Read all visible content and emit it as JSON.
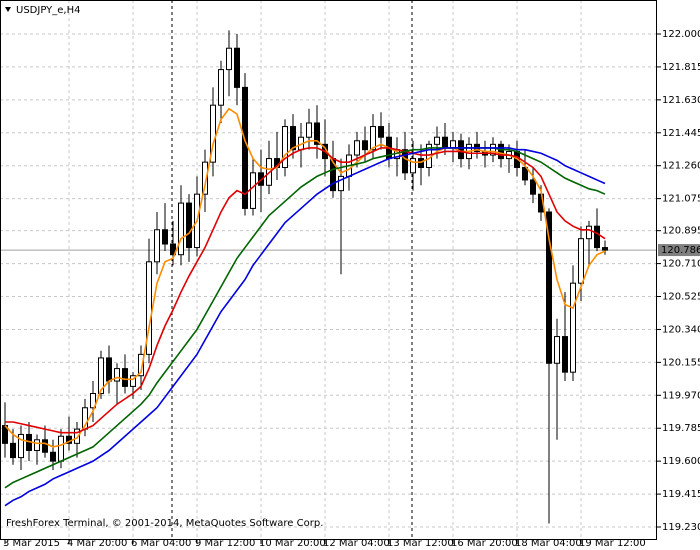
{
  "chart_data": {
    "type": "candlestick",
    "title": "USDJPY_e,H4",
    "footer": "FreshForex Terminal, © 2001-2014, MetaQuotes Software Corp.",
    "categories": [
      "3 Mar 2015",
      null,
      null,
      null,
      null,
      null,
      null,
      null,
      "4 Mar 20:00",
      null,
      null,
      null,
      null,
      null,
      null,
      null,
      "6 Mar 04:00",
      null,
      null,
      null,
      null,
      null,
      null,
      null,
      "9 Mar 12:00",
      null,
      null,
      null,
      null,
      null,
      null,
      null,
      "10 Mar 20:00",
      null,
      null,
      null,
      null,
      null,
      null,
      null,
      "12 Mar 04:00",
      null,
      null,
      null,
      null,
      null,
      null,
      null,
      "13 Mar 12:00",
      null,
      null,
      null,
      null,
      null,
      null,
      null,
      "16 Mar 20:00",
      null,
      null,
      null,
      null,
      null,
      null,
      null,
      "18 Mar 04:00",
      null,
      null,
      null,
      null,
      null,
      null,
      null,
      "19 Mar 12:00",
      null,
      null,
      null
    ],
    "ohlc": [
      [
        119.8,
        119.93,
        119.62,
        119.7
      ],
      [
        119.7,
        119.78,
        119.58,
        119.62
      ],
      [
        119.62,
        119.8,
        119.55,
        119.75
      ],
      [
        119.75,
        119.82,
        119.6,
        119.66
      ],
      [
        119.66,
        119.75,
        119.58,
        119.72
      ],
      [
        119.72,
        119.8,
        119.62,
        119.65
      ],
      [
        119.65,
        119.72,
        119.55,
        119.6
      ],
      [
        119.6,
        119.78,
        119.56,
        119.74
      ],
      [
        119.74,
        119.85,
        119.66,
        119.7
      ],
      [
        119.7,
        119.82,
        119.62,
        119.78
      ],
      [
        119.78,
        119.95,
        119.74,
        119.9
      ],
      [
        119.9,
        120.05,
        119.82,
        119.98
      ],
      [
        119.98,
        120.22,
        119.95,
        120.18
      ],
      [
        120.18,
        120.25,
        119.98,
        120.05
      ],
      [
        120.05,
        120.15,
        119.92,
        120.12
      ],
      [
        120.12,
        120.2,
        119.98,
        120.02
      ],
      [
        120.02,
        120.1,
        119.95,
        120.08
      ],
      [
        120.08,
        120.25,
        120.0,
        120.2
      ],
      [
        120.2,
        120.85,
        120.15,
        120.72
      ],
      [
        120.72,
        121.0,
        120.65,
        120.9
      ],
      [
        120.9,
        121.05,
        120.78,
        120.82
      ],
      [
        120.82,
        120.95,
        120.7,
        120.76
      ],
      [
        120.76,
        121.15,
        120.7,
        121.05
      ],
      [
        121.05,
        121.1,
        120.72,
        120.8
      ],
      [
        120.8,
        121.2,
        120.75,
        121.1
      ],
      [
        121.1,
        121.35,
        121.0,
        121.28
      ],
      [
        121.28,
        121.7,
        121.2,
        121.6
      ],
      [
        121.6,
        121.85,
        121.5,
        121.8
      ],
      [
        121.8,
        122.02,
        121.65,
        121.92
      ],
      [
        121.92,
        122.0,
        121.6,
        121.7
      ],
      [
        121.7,
        121.78,
        120.98,
        121.02
      ],
      [
        121.02,
        121.3,
        120.98,
        121.22
      ],
      [
        121.22,
        121.35,
        121.0,
        121.15
      ],
      [
        121.15,
        121.4,
        121.1,
        121.3
      ],
      [
        121.3,
        121.45,
        121.18,
        121.25
      ],
      [
        121.25,
        121.52,
        121.2,
        121.48
      ],
      [
        121.48,
        121.55,
        121.3,
        121.35
      ],
      [
        121.35,
        121.5,
        121.25,
        121.42
      ],
      [
        121.42,
        121.58,
        121.35,
        121.5
      ],
      [
        121.5,
        121.6,
        121.3,
        121.38
      ],
      [
        121.38,
        121.52,
        121.2,
        121.3
      ],
      [
        121.3,
        121.4,
        121.08,
        121.12
      ],
      [
        121.12,
        121.3,
        120.65,
        121.2
      ],
      [
        121.2,
        121.38,
        121.12,
        121.32
      ],
      [
        121.32,
        121.45,
        121.25,
        121.4
      ],
      [
        121.4,
        121.48,
        121.28,
        121.35
      ],
      [
        121.35,
        121.55,
        121.3,
        121.48
      ],
      [
        121.48,
        121.56,
        121.35,
        121.42
      ],
      [
        121.42,
        121.5,
        121.25,
        121.3
      ],
      [
        121.3,
        121.42,
        121.2,
        121.35
      ],
      [
        121.35,
        121.45,
        121.18,
        121.22
      ],
      [
        121.22,
        121.4,
        121.12,
        121.3
      ],
      [
        121.3,
        121.38,
        121.15,
        121.25
      ],
      [
        121.25,
        121.4,
        121.2,
        121.38
      ],
      [
        121.38,
        121.48,
        121.3,
        121.42
      ],
      [
        121.42,
        121.5,
        121.32,
        121.36
      ],
      [
        121.36,
        121.45,
        121.28,
        121.4
      ],
      [
        121.4,
        121.44,
        121.25,
        121.3
      ],
      [
        121.3,
        121.42,
        121.24,
        121.38
      ],
      [
        121.38,
        121.45,
        121.3,
        121.34
      ],
      [
        121.34,
        121.4,
        121.25,
        121.32
      ],
      [
        121.32,
        121.42,
        121.28,
        121.38
      ],
      [
        121.38,
        121.4,
        121.25,
        121.3
      ],
      [
        121.3,
        121.38,
        121.22,
        121.34
      ],
      [
        121.34,
        121.4,
        121.2,
        121.25
      ],
      [
        121.25,
        121.35,
        121.15,
        121.18
      ],
      [
        121.18,
        121.25,
        121.05,
        121.1
      ],
      [
        121.1,
        121.15,
        120.95,
        121.0
      ],
      [
        121.0,
        121.02,
        119.25,
        120.15
      ],
      [
        120.15,
        120.4,
        119.72,
        120.3
      ],
      [
        120.3,
        120.55,
        120.05,
        120.1
      ],
      [
        120.1,
        120.7,
        120.05,
        120.6
      ],
      [
        120.6,
        120.92,
        120.5,
        120.85
      ],
      [
        120.85,
        120.95,
        120.7,
        120.92
      ],
      [
        120.92,
        121.02,
        120.78,
        120.8
      ],
      [
        120.8,
        120.84,
        120.76,
        120.786
      ]
    ],
    "series": [
      {
        "color": "#ff8c00",
        "values": [
          119.8,
          119.75,
          119.72,
          119.71,
          119.7,
          119.7,
          119.68,
          119.69,
          119.71,
          119.73,
          119.8,
          119.88,
          120.0,
          120.05,
          120.07,
          120.06,
          120.06,
          120.1,
          120.35,
          120.6,
          120.72,
          120.74,
          120.85,
          120.88,
          120.95,
          121.15,
          121.38,
          121.52,
          121.58,
          121.55,
          121.4,
          121.3,
          121.25,
          121.24,
          121.25,
          121.32,
          121.36,
          121.38,
          121.4,
          121.4,
          121.36,
          121.28,
          121.22,
          121.24,
          121.28,
          121.32,
          121.36,
          121.38,
          121.36,
          121.34,
          121.3,
          121.28,
          121.28,
          121.3,
          121.34,
          121.36,
          121.36,
          121.34,
          121.34,
          121.35,
          121.34,
          121.34,
          121.33,
          121.32,
          121.3,
          121.26,
          121.2,
          121.12,
          120.85,
          120.62,
          120.48,
          120.46,
          120.58,
          120.7,
          120.76,
          120.78
        ]
      },
      {
        "color": "#e00000",
        "values": [
          119.82,
          119.82,
          119.81,
          119.8,
          119.79,
          119.78,
          119.77,
          119.76,
          119.76,
          119.76,
          119.78,
          119.8,
          119.84,
          119.88,
          119.92,
          119.95,
          119.98,
          120.02,
          120.12,
          120.25,
          120.36,
          120.45,
          120.55,
          120.64,
          120.72,
          120.8,
          120.9,
          121.0,
          121.08,
          121.12,
          121.1,
          121.14,
          121.18,
          121.22,
          121.26,
          121.3,
          121.33,
          121.35,
          121.36,
          121.36,
          121.34,
          121.3,
          121.28,
          121.28,
          121.3,
          121.32,
          121.34,
          121.36,
          121.36,
          121.35,
          121.34,
          121.33,
          121.32,
          121.32,
          121.33,
          121.34,
          121.34,
          121.34,
          121.33,
          121.33,
          121.33,
          121.33,
          121.32,
          121.32,
          121.31,
          121.28,
          121.25,
          121.2,
          121.1,
          121.0,
          120.95,
          120.92,
          120.9,
          120.9,
          120.88,
          120.85
        ]
      },
      {
        "color": "#006400",
        "values": [
          119.45,
          119.48,
          119.5,
          119.52,
          119.54,
          119.56,
          119.58,
          119.6,
          119.62,
          119.64,
          119.66,
          119.68,
          119.72,
          119.76,
          119.8,
          119.84,
          119.88,
          119.92,
          119.97,
          120.04,
          120.1,
          120.16,
          120.22,
          120.28,
          120.34,
          120.42,
          120.5,
          120.58,
          120.66,
          120.74,
          120.8,
          120.86,
          120.92,
          120.98,
          121.02,
          121.06,
          121.1,
          121.14,
          121.17,
          121.2,
          121.22,
          121.24,
          121.25,
          121.26,
          121.27,
          121.28,
          121.3,
          121.31,
          121.32,
          121.33,
          121.34,
          121.35,
          121.35,
          121.36,
          121.36,
          121.36,
          121.36,
          121.36,
          121.36,
          121.36,
          121.36,
          121.36,
          121.35,
          121.35,
          121.34,
          121.32,
          121.3,
          121.28,
          121.25,
          121.22,
          121.19,
          121.17,
          121.15,
          121.13,
          121.12,
          121.1
        ]
      },
      {
        "color": "#0000e0",
        "values": [
          119.35,
          119.38,
          119.4,
          119.43,
          119.45,
          119.47,
          119.5,
          119.52,
          119.54,
          119.56,
          119.58,
          119.6,
          119.63,
          119.66,
          119.7,
          119.74,
          119.78,
          119.82,
          119.86,
          119.9,
          119.96,
          120.02,
          120.08,
          120.14,
          120.2,
          120.28,
          120.36,
          120.44,
          120.5,
          120.56,
          120.62,
          120.7,
          120.76,
          120.82,
          120.88,
          120.94,
          120.98,
          121.02,
          121.06,
          121.1,
          121.13,
          121.16,
          121.18,
          121.2,
          121.22,
          121.24,
          121.26,
          121.28,
          121.3,
          121.31,
          121.32,
          121.33,
          121.34,
          121.35,
          121.35,
          121.36,
          121.36,
          121.36,
          121.36,
          121.36,
          121.36,
          121.36,
          121.36,
          121.36,
          121.35,
          121.35,
          121.34,
          121.33,
          121.31,
          121.29,
          121.26,
          121.24,
          121.22,
          121.2,
          121.18,
          121.16
        ]
      }
    ],
    "last_price": 120.786,
    "ylim": [
      119.157,
      122.191
    ],
    "yticks": [
      {
        "value": 122.0,
        "label": "122.000"
      },
      121.815,
      {
        "value": 121.63,
        "label": "121.630"
      },
      121.445,
      {
        "value": 121.26,
        "label": "121.260"
      },
      121.075,
      120.895,
      {
        "value": 120.71,
        "label": "120.710"
      },
      120.525,
      {
        "value": 120.34,
        "label": "120.340"
      },
      120.155,
      {
        "value": 119.97,
        "label": "119.970"
      },
      119.785,
      {
        "value": 119.6,
        "label": "119.600"
      },
      119.415,
      {
        "value": 119.23,
        "label": "119.230"
      }
    ],
    "grid": true
  }
}
